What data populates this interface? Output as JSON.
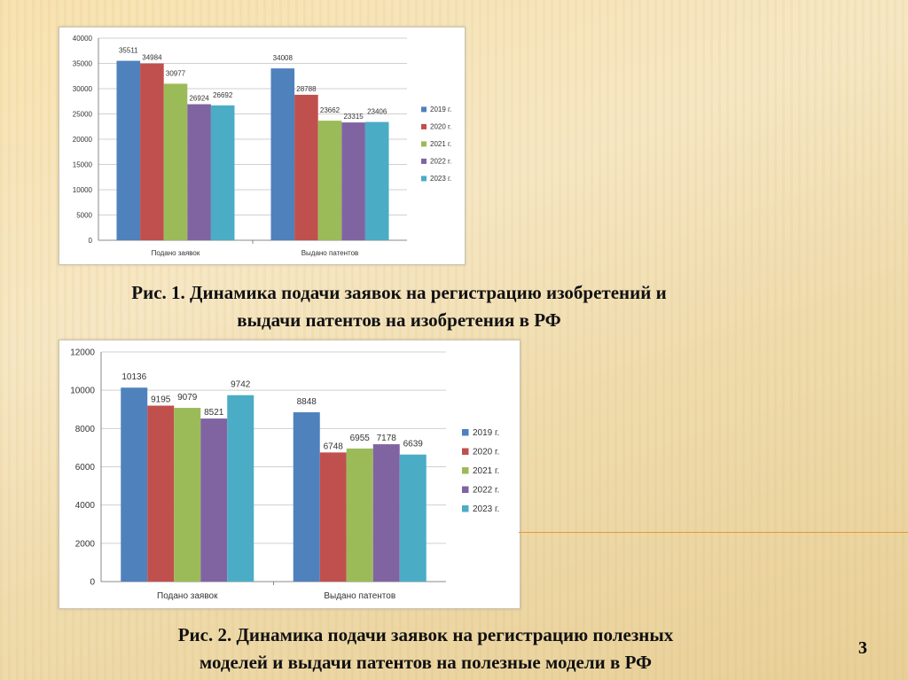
{
  "chart_data": [
    {
      "type": "bar",
      "categories": [
        "Подано заявок",
        "Выдано патентов"
      ],
      "series": [
        {
          "name": "2019 г.",
          "values": [
            35511,
            34008
          ]
        },
        {
          "name": "2020 г.",
          "values": [
            34984,
            28788
          ]
        },
        {
          "name": "2021 г.",
          "values": [
            30977,
            23662
          ]
        },
        {
          "name": "2022 г.",
          "values": [
            26924,
            23315
          ]
        },
        {
          "name": "2023 г.",
          "values": [
            26692,
            23406
          ]
        }
      ],
      "ylim": [
        0,
        40000
      ],
      "yticks": [
        0,
        5000,
        10000,
        15000,
        20000,
        25000,
        30000,
        35000,
        40000
      ],
      "grid": true,
      "legend": "right"
    },
    {
      "type": "bar",
      "categories": [
        "Подано заявок",
        "Выдано патентов"
      ],
      "series": [
        {
          "name": "2019 г.",
          "values": [
            10136,
            8848
          ]
        },
        {
          "name": "2020 г.",
          "values": [
            9195,
            6748
          ]
        },
        {
          "name": "2021 г.",
          "values": [
            9079,
            6955
          ]
        },
        {
          "name": "2022 г.",
          "values": [
            8521,
            7178
          ]
        },
        {
          "name": "2023 г.",
          "values": [
            9742,
            6639
          ]
        }
      ],
      "ylim": [
        0,
        12000
      ],
      "yticks": [
        0,
        2000,
        4000,
        6000,
        8000,
        10000,
        12000
      ],
      "grid": true,
      "legend": "right"
    }
  ],
  "colors": [
    "#4f81bd",
    "#c0504d",
    "#9bbb59",
    "#8064a2",
    "#4bacc6"
  ],
  "captions": {
    "fig1": [
      "Рис. 1. Динамика подачи заявок на регистрацию изобретений и",
      "выдачи патентов на изобретения в РФ"
    ],
    "fig2": [
      "Рис. 2. Динамика подачи заявок на регистрацию полезных",
      "моделей и выдачи патентов на полезные модели в РФ"
    ]
  },
  "page_number": "3"
}
